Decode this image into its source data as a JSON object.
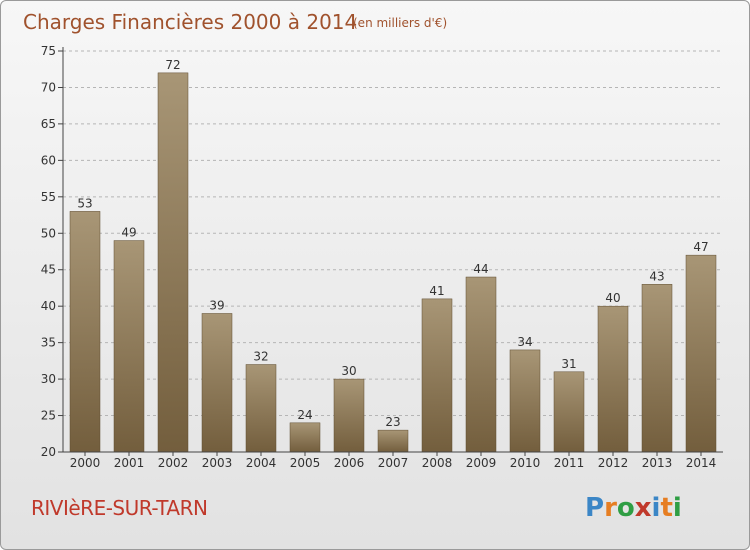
{
  "chart_data": {
    "type": "bar",
    "title": "Charges Financières 2000 à 2014",
    "subtitle": "(en milliers d'€)",
    "categories": [
      "2000",
      "2001",
      "2002",
      "2003",
      "2004",
      "2005",
      "2006",
      "2007",
      "2008",
      "2009",
      "2010",
      "2011",
      "2012",
      "2013",
      "2014"
    ],
    "values": [
      53,
      49,
      72,
      39,
      32,
      24,
      30,
      23,
      41,
      44,
      34,
      31,
      40,
      43,
      47
    ],
    "ylim": [
      20,
      75
    ],
    "yticks": [
      20,
      25,
      30,
      35,
      40,
      45,
      50,
      55,
      60,
      65,
      70,
      75
    ],
    "grid": true,
    "bar_color_top": "#a89676",
    "bar_color_bottom": "#735e3d"
  },
  "footer": {
    "place": "RIVIèRE-SUR-TARN",
    "logo": {
      "letters": [
        "P",
        "r",
        "o",
        "x",
        "i",
        "t",
        "i"
      ],
      "colors": [
        "#3b86c6",
        "#e67e22",
        "#2f9e44",
        "#c0392b",
        "#3b86c6",
        "#e67e22",
        "#2f9e44"
      ]
    }
  }
}
